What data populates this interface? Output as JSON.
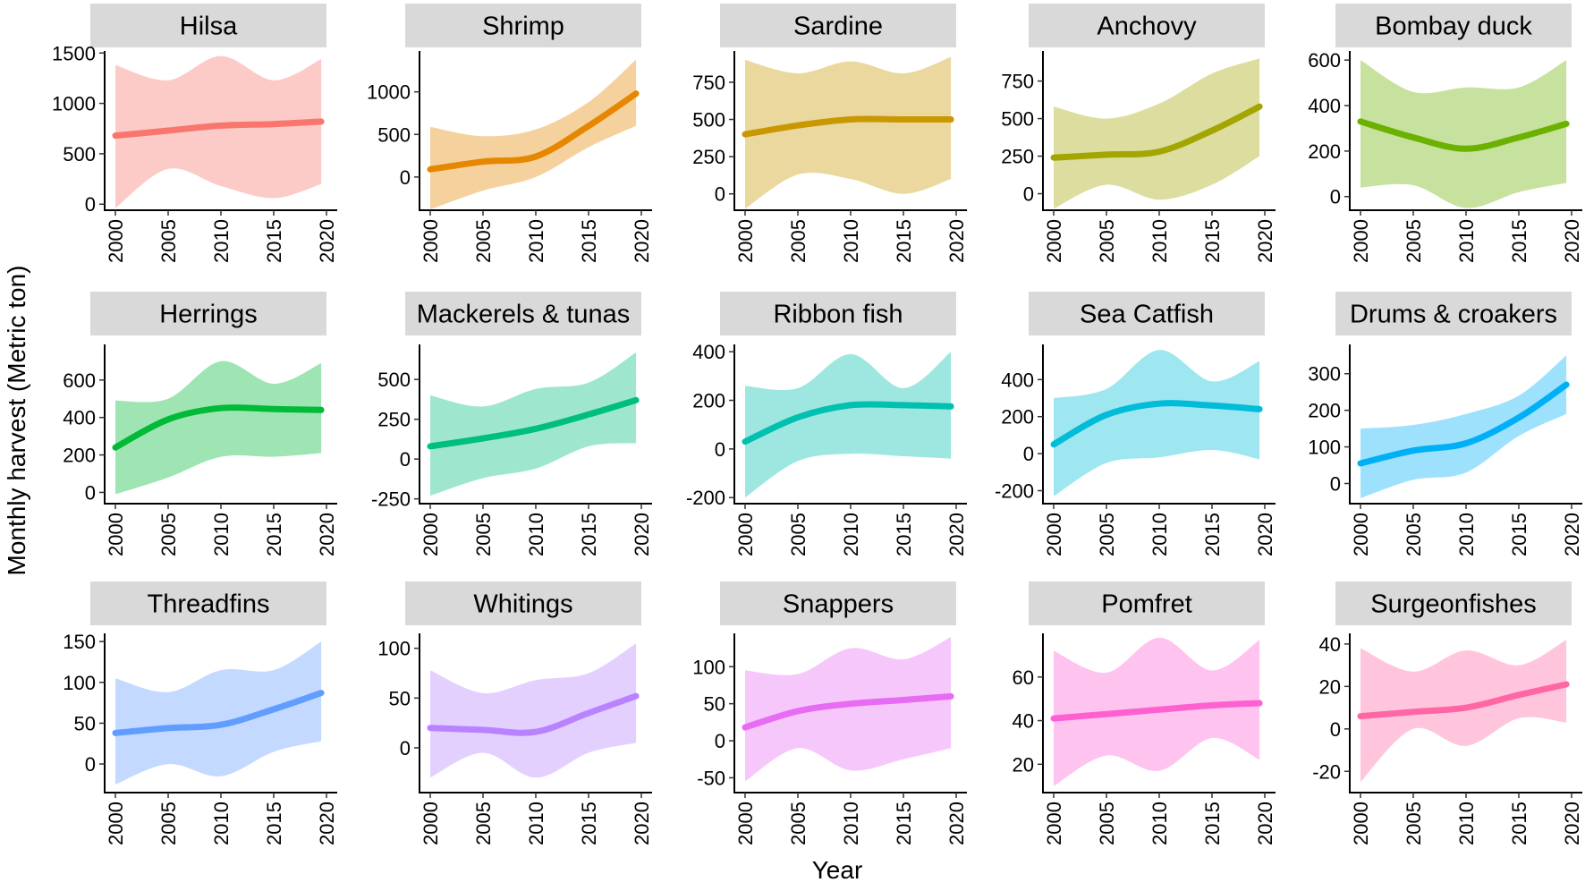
{
  "chart_data": {
    "type": "line",
    "title": "",
    "xlabel": "Year",
    "ylabel": "Monthly harvest (Metric ton)",
    "xlim": [
      1999.5,
      2019.8
    ],
    "x_ticks": [
      2000,
      2005,
      2010,
      2015,
      2020
    ],
    "x": [
      2000,
      2005,
      2010,
      2015,
      2019.5
    ],
    "panels": [
      {
        "name": "Hilsa",
        "color": "#F8766D",
        "ylim": [
          -60,
          1520
        ],
        "y_ticks": [
          0,
          500,
          1000,
          1500
        ],
        "fit": [
          680,
          730,
          780,
          795,
          820
        ],
        "lower": [
          -40,
          350,
          180,
          60,
          200
        ],
        "upper": [
          1380,
          1230,
          1470,
          1230,
          1440
        ]
      },
      {
        "name": "Shrimp",
        "color": "#E58700",
        "ylim": [
          -390,
          1480
        ],
        "y_ticks": [
          0,
          500,
          1000
        ],
        "fit": [
          90,
          180,
          240,
          600,
          980
        ],
        "lower": [
          -380,
          -160,
          0,
          350,
          600
        ],
        "upper": [
          590,
          480,
          560,
          880,
          1380
        ]
      },
      {
        "name": "Sardine",
        "color": "#C99800",
        "ylim": [
          -110,
          960
        ],
        "y_ticks": [
          0,
          250,
          500,
          750
        ],
        "fit": [
          400,
          460,
          500,
          500,
          500
        ],
        "lower": [
          -100,
          130,
          100,
          0,
          100
        ],
        "upper": [
          900,
          810,
          890,
          810,
          920
        ]
      },
      {
        "name": "Anchovy",
        "color": "#A3A500",
        "ylim": [
          -110,
          950
        ],
        "y_ticks": [
          0,
          250,
          500,
          750
        ],
        "fit": [
          240,
          260,
          280,
          420,
          580
        ],
        "lower": [
          -100,
          60,
          -40,
          60,
          250
        ],
        "upper": [
          580,
          500,
          600,
          800,
          900
        ]
      },
      {
        "name": "Bombay duck",
        "color": "#6BB100",
        "ylim": [
          -60,
          640
        ],
        "y_ticks": [
          0,
          200,
          400,
          600
        ],
        "fit": [
          330,
          260,
          210,
          260,
          320
        ],
        "lower": [
          40,
          50,
          -50,
          20,
          60
        ],
        "upper": [
          600,
          460,
          480,
          480,
          600
        ]
      },
      {
        "name": "Herrings",
        "color": "#00BA38",
        "ylim": [
          -60,
          790
        ],
        "y_ticks": [
          0,
          200,
          400,
          600
        ],
        "fit": [
          240,
          390,
          450,
          445,
          440
        ],
        "lower": [
          -10,
          80,
          190,
          190,
          210
        ],
        "upper": [
          490,
          500,
          700,
          580,
          690
        ]
      },
      {
        "name": "Mackerels & tunas",
        "color": "#00BF7D",
        "ylim": [
          -280,
          720
        ],
        "y_ticks": [
          -250,
          0,
          250,
          500
        ],
        "fit": [
          80,
          130,
          190,
          280,
          370
        ],
        "lower": [
          -230,
          -120,
          -60,
          80,
          100
        ],
        "upper": [
          400,
          330,
          440,
          480,
          670
        ]
      },
      {
        "name": "Ribbon fish",
        "color": "#00C0AF",
        "ylim": [
          -225,
          430
        ],
        "y_ticks": [
          -200,
          0,
          200,
          400
        ],
        "fit": [
          30,
          130,
          180,
          180,
          175
        ],
        "lower": [
          -200,
          -50,
          -20,
          -30,
          -40
        ],
        "upper": [
          260,
          250,
          390,
          250,
          400
        ]
      },
      {
        "name": "Sea Catfish",
        "color": "#00BCD8",
        "ylim": [
          -270,
          590
        ],
        "y_ticks": [
          -200,
          0,
          200,
          400
        ],
        "fit": [
          50,
          210,
          270,
          260,
          240
        ],
        "lower": [
          -230,
          -50,
          -20,
          20,
          -30
        ],
        "upper": [
          300,
          350,
          560,
          390,
          500
        ]
      },
      {
        "name": "Drums & croakers",
        "color": "#00B0F6",
        "ylim": [
          -55,
          380
        ],
        "y_ticks": [
          0,
          100,
          200,
          300
        ],
        "fit": [
          55,
          90,
          110,
          180,
          270
        ],
        "lower": [
          -40,
          10,
          30,
          130,
          190
        ],
        "upper": [
          150,
          160,
          190,
          240,
          350
        ]
      },
      {
        "name": "Threadfins",
        "color": "#619CFF",
        "ylim": [
          -35,
          160
        ],
        "y_ticks": [
          0,
          50,
          100,
          150
        ],
        "fit": [
          38,
          44,
          48,
          67,
          87
        ],
        "lower": [
          -25,
          0,
          -15,
          15,
          28
        ],
        "upper": [
          105,
          88,
          115,
          115,
          150
        ]
      },
      {
        "name": "Whitings",
        "color": "#B983FF",
        "ylim": [
          -45,
          115
        ],
        "y_ticks": [
          0,
          50,
          100
        ],
        "fit": [
          20,
          18,
          16,
          35,
          52
        ],
        "lower": [
          -30,
          -5,
          -30,
          -5,
          5
        ],
        "upper": [
          78,
          55,
          68,
          75,
          105
        ]
      },
      {
        "name": "Snappers",
        "color": "#E76BF3",
        "ylim": [
          -70,
          145
        ],
        "y_ticks": [
          -50,
          0,
          50,
          100
        ],
        "fit": [
          18,
          40,
          50,
          55,
          60
        ],
        "lower": [
          -55,
          -10,
          -40,
          -25,
          -10
        ],
        "upper": [
          95,
          90,
          125,
          110,
          140
        ]
      },
      {
        "name": "Pomfret",
        "color": "#FD61D1",
        "ylim": [
          7,
          80
        ],
        "y_ticks": [
          20,
          40,
          60
        ],
        "fit": [
          41,
          43,
          45,
          47,
          48
        ],
        "lower": [
          10,
          24,
          17,
          32,
          22
        ],
        "upper": [
          72,
          62,
          78,
          63,
          77
        ]
      },
      {
        "name": "Surgeonfishes",
        "color": "#FF67A4",
        "ylim": [
          -30,
          45
        ],
        "y_ticks": [
          -20,
          0,
          20,
          40
        ],
        "fit": [
          6,
          8,
          10,
          16,
          21
        ],
        "lower": [
          -25,
          0,
          -8,
          5,
          3
        ],
        "upper": [
          38,
          27,
          37,
          30,
          42
        ]
      }
    ]
  }
}
